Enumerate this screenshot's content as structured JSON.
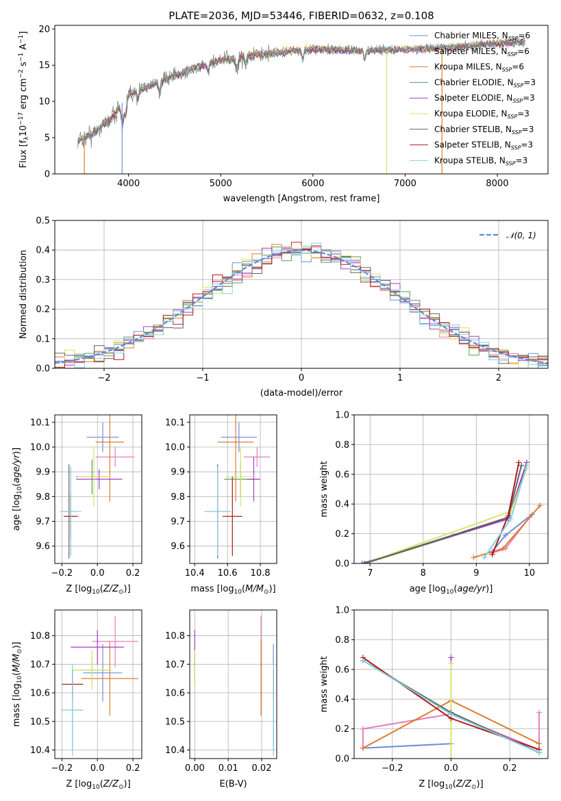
{
  "figure": {
    "title": "PLATE=2036, MJD=53446, FIBERID=0632, z=0.108"
  },
  "models": [
    {
      "label": "Chabrier MILES, N$_{SSP}$=6",
      "color": "#6a8fd8"
    },
    {
      "label": "Salpeter MILES, N$_{SSP}$=6",
      "color": "#e37fbb"
    },
    {
      "label": "Kroupa MILES, N$_{SSP}$=6",
      "color": "#e07b2b"
    },
    {
      "label": "Chabrier ELODIE, N$_{SSP}$=3",
      "color": "#5a9a5a"
    },
    {
      "label": "Salpeter ELODIE, N$_{SSP}$=3",
      "color": "#a43bc8"
    },
    {
      "label": "Kroupa ELODIE, N$_{SSP}$=3",
      "color": "#d6e36a"
    },
    {
      "label": "Chabrier STELIB, N$_{SSP}$=3",
      "color": "#606060"
    },
    {
      "label": "Salpeter STELIB, N$_{SSP}$=3",
      "color": "#b01a1a"
    },
    {
      "label": "Kroupa STELIB, N$_{SSP}$=3",
      "color": "#7fd1e0"
    }
  ],
  "legend_text": [
    "Chabrier MILES, N",
    "Salpeter MILES, N",
    "Kroupa MILES, N",
    "Chabrier ELODIE, N",
    "Salpeter ELODIE, N",
    "Kroupa ELODIE, N",
    "Chabrier STELIB, N",
    "Salpeter STELIB, N",
    "Kroupa STELIB, N"
  ],
  "legend_sub": "SSP",
  "legend_val": [
    "=6",
    "=6",
    "=6",
    "=3",
    "=3",
    "=3",
    "=3",
    "=3",
    "=3"
  ],
  "chart_data": [
    {
      "id": "spectrum",
      "type": "line",
      "xlabel": "wavelength [Angstrom, rest frame]",
      "ylabel_main": "Flux [f",
      "ylabel_sub": "λ",
      "ylabel_rest": "10",
      "ylabel_exp": "−17",
      "ylabel_tail": " erg cm",
      "ylabel_exp2": "−2",
      "ylabel_tail2": " s",
      "ylabel_exp3": "−1",
      "ylabel_tail3": " A",
      "ylabel_exp4": "−1",
      "ylabel_end": "]",
      "xlim": [
        3200,
        8550
      ],
      "ylim": [
        0,
        20.5
      ],
      "xticks": [
        4000,
        5000,
        6000,
        7000,
        8000
      ],
      "yticks": [
        0,
        5,
        10,
        15,
        20
      ],
      "continuum_x": [
        3450,
        3600,
        3800,
        4000,
        4200,
        4500,
        4800,
        5000,
        5200,
        5500,
        5800,
        6000,
        6300,
        6600,
        7000,
        7300,
        7600,
        8000,
        8300
      ],
      "continuum_y": [
        4.5,
        5.5,
        7.5,
        11.0,
        12.0,
        13.5,
        15.0,
        15.6,
        16.2,
        16.5,
        17.0,
        17.2,
        17.1,
        17.0,
        17.2,
        17.3,
        17.6,
        18.0,
        18.3
      ],
      "wavelength_range": [
        3450,
        8300
      ]
    },
    {
      "id": "residuals",
      "type": "histogram",
      "xlabel": "(data-model)/error",
      "ylabel": "Normed distribution",
      "xlim": [
        -2.5,
        2.5
      ],
      "ylim": [
        0,
        0.5
      ],
      "xticks": [
        -2,
        -1,
        0,
        1,
        2
      ],
      "yticks": [
        0.0,
        0.1,
        0.2,
        0.3,
        0.4,
        0.5
      ],
      "grid": true,
      "bin_width": 0.1,
      "reference_curve": "𝒩(0, 1)",
      "legend_location": "upper right"
    },
    {
      "id": "age_vs_Z",
      "type": "scatter",
      "xlabel": "Z [log",
      "xlabel_sub": "10",
      "xlabel_rest": "(Z/Z",
      "xlabel_sun": "⊙",
      "xlabel_end": ")]",
      "ylabel": "age  [log10(age/yr)]",
      "xlim": [
        -0.24,
        0.25
      ],
      "ylim": [
        9.53,
        10.13
      ],
      "xticks": [
        -0.2,
        0.0,
        0.2
      ],
      "yticks": [
        9.6,
        9.7,
        9.8,
        9.9,
        10.0,
        10.1
      ],
      "grid": true,
      "points": [
        {
          "x": 0.03,
          "y": 10.04,
          "xerr": 0.09,
          "yerr": 0.06
        },
        {
          "x": 0.1,
          "y": 9.96,
          "xerr": 0.11,
          "yerr": 0.04
        },
        {
          "x": 0.07,
          "y": 10.02,
          "xerr": 0.08,
          "yerr": 0.24
        },
        {
          "x": -0.03,
          "y": 9.88,
          "xerr": 0.09,
          "yerr": 0.07
        },
        {
          "x": 0.01,
          "y": 9.87,
          "xerr": 0.13,
          "yerr": 0.04
        },
        {
          "x": -0.02,
          "y": 9.88,
          "xerr": 0.09,
          "yerr": 0.12
        },
        {
          "x": -0.16,
          "y": 9.74,
          "xerr": 0.04,
          "yerr": 0.19
        },
        {
          "x": -0.15,
          "y": 9.72,
          "xerr": 0.04,
          "yerr": 0.09
        },
        {
          "x": -0.15,
          "y": 9.74,
          "xerr": 0.06,
          "yerr": 0.18
        }
      ]
    },
    {
      "id": "age_vs_mass",
      "type": "scatter",
      "xlabel": "mass [log",
      "ylabel": "",
      "xlim": [
        10.37,
        10.9
      ],
      "ylim": [
        9.53,
        10.13
      ],
      "xticks": [
        10.4,
        10.6,
        10.8
      ],
      "yticks": [
        9.6,
        9.7,
        9.8,
        9.9,
        10.0,
        10.1
      ],
      "grid": true,
      "points": [
        {
          "x": 10.67,
          "y": 10.04,
          "xerr": 0.11,
          "yerr": 0.06
        },
        {
          "x": 10.78,
          "y": 9.96,
          "xerr": 0.08,
          "yerr": 0.04
        },
        {
          "x": 10.65,
          "y": 10.02,
          "xerr": 0.11,
          "yerr": 0.24
        },
        {
          "x": 10.68,
          "y": 9.87,
          "xerr": 0.1,
          "yerr": 0.07
        },
        {
          "x": 10.76,
          "y": 9.87,
          "xerr": 0.04,
          "yerr": 0.09
        },
        {
          "x": 10.68,
          "y": 9.88,
          "xerr": 0.09,
          "yerr": 0.12
        },
        {
          "x": 10.54,
          "y": 9.74,
          "xerr": 0.08,
          "yerr": 0.19
        },
        {
          "x": 10.63,
          "y": 9.72,
          "xerr": 0.06,
          "yerr": 0.16
        },
        {
          "x": 10.54,
          "y": 9.74,
          "xerr": 0.08,
          "yerr": 0.18
        }
      ]
    },
    {
      "id": "massweight_vs_age",
      "type": "line",
      "xlabel": "age  [log",
      "ylabel": "mass weight",
      "xlim": [
        6.7,
        10.35
      ],
      "ylim": [
        0,
        1.0
      ],
      "xticks": [
        7,
        8,
        9,
        10
      ],
      "yticks": [
        0.0,
        0.2,
        0.4,
        0.6,
        0.8,
        1.0
      ],
      "grid": true,
      "series": [
        {
          "x": [
            9.3,
            9.55,
            10.05
          ],
          "y": [
            0.08,
            0.19,
            0.33
          ]
        },
        {
          "x": [
            9.3,
            9.55,
            10.0
          ],
          "y": [
            0.07,
            0.1,
            0.31
          ]
        },
        {
          "x": [
            8.95,
            9.5,
            10.2
          ],
          "y": [
            0.04,
            0.1,
            0.39
          ]
        },
        {
          "x": [
            6.9,
            9.6,
            9.95
          ],
          "y": [
            0.0,
            0.3,
            0.68
          ]
        },
        {
          "x": [
            6.85,
            9.6,
            9.95
          ],
          "y": [
            0.0,
            0.3,
            0.68
          ]
        },
        {
          "x": [
            6.9,
            9.65,
            9.95
          ],
          "y": [
            0.0,
            0.35,
            0.64
          ]
        },
        {
          "x": [
            6.9,
            9.6,
            9.85
          ],
          "y": [
            0.0,
            0.31,
            0.66
          ]
        },
        {
          "x": [
            9.3,
            9.6,
            9.8
          ],
          "y": [
            0.06,
            0.32,
            0.68
          ]
        },
        {
          "x": [
            9.15,
            9.65,
            9.95
          ],
          "y": [
            0.04,
            0.3,
            0.66
          ]
        }
      ]
    },
    {
      "id": "mass_vs_Z",
      "type": "scatter",
      "xlabel": "Z [log",
      "ylabel": "mass [log10(M/M⊙)]",
      "xlim": [
        -0.24,
        0.25
      ],
      "ylim": [
        10.37,
        10.89
      ],
      "xticks": [
        -0.2,
        0.0,
        0.2
      ],
      "yticks": [
        10.4,
        10.5,
        10.6,
        10.7,
        10.8
      ],
      "grid": true,
      "points": [
        {
          "x": 0.03,
          "y": 10.67,
          "xerr": 0.11,
          "yerr": 0.1
        },
        {
          "x": 0.1,
          "y": 10.78,
          "xerr": 0.13,
          "yerr": 0.09
        },
        {
          "x": 0.07,
          "y": 10.65,
          "xerr": 0.16,
          "yerr": 0.13
        },
        {
          "x": -0.03,
          "y": 10.68,
          "xerr": 0.1,
          "yerr": 0.05
        },
        {
          "x": 0.0,
          "y": 10.76,
          "xerr": 0.15,
          "yerr": 0.06
        },
        {
          "x": -0.03,
          "y": 10.68,
          "xerr": 0.11,
          "yerr": 0.07
        },
        {
          "x": -0.14,
          "y": 10.54,
          "xerr": 0.06,
          "yerr": 0.14
        },
        {
          "x": -0.14,
          "y": 10.63,
          "xerr": 0.06,
          "yerr": 0.05
        },
        {
          "x": -0.14,
          "y": 10.54,
          "xerr": 0.06,
          "yerr": 0.16
        }
      ]
    },
    {
      "id": "mass_vs_ebv",
      "type": "scatter",
      "xlabel": "E(B-V)",
      "ylabel": "",
      "xlim": [
        -0.0015,
        0.0245
      ],
      "ylim": [
        10.37,
        10.89
      ],
      "xticks": [
        0.0,
        0.01,
        0.02
      ],
      "yticks": [
        10.4,
        10.5,
        10.6,
        10.7,
        10.8
      ],
      "grid": true,
      "points": [
        {
          "x": 0.0235,
          "y": 10.67,
          "yerr": 0.1
        },
        {
          "x": 0.0198,
          "y": 10.78,
          "yerr": 0.09
        },
        {
          "x": 0.0198,
          "y": 10.65,
          "yerr": 0.13
        },
        {
          "x": 0.0,
          "y": 10.68,
          "yerr": 0.05
        },
        {
          "x": 0.0,
          "y": 10.76,
          "yerr": 0.06
        },
        {
          "x": 0.0,
          "y": 10.68,
          "yerr": 0.07
        },
        {
          "x": 0.0235,
          "y": 10.54,
          "yerr": 0.14
        },
        {
          "x": 0.0235,
          "y": 10.63,
          "yerr": 0.05
        },
        {
          "x": 0.0235,
          "y": 10.54,
          "yerr": 0.16
        }
      ]
    },
    {
      "id": "massweight_vs_Z",
      "type": "line",
      "xlabel": "Z [log",
      "ylabel": "mass weight",
      "xlim": [
        -0.33,
        0.33
      ],
      "ylim": [
        0,
        1.0
      ],
      "xticks": [
        -0.2,
        0.0,
        0.2
      ],
      "yticks": [
        0.0,
        0.2,
        0.4,
        0.6,
        0.8,
        1.0
      ],
      "grid": true,
      "series": [
        {
          "x": [
            -0.3,
            0.0,
            0.0,
            0.3
          ],
          "y": [
            0.07,
            0.1,
            0.3,
            0.04
          ]
        },
        {
          "x": [
            -0.3,
            -0.3,
            0.0,
            0.3,
            0.3
          ],
          "y": [
            0.07,
            0.2,
            0.3,
            0.06,
            0.31
          ]
        },
        {
          "x": [
            -0.3,
            0.0,
            0.3
          ],
          "y": [
            0.07,
            0.39,
            0.1
          ]
        },
        {
          "x": [
            -0.3,
            0.0,
            0.3
          ],
          "y": [
            0.66,
            0.3,
            0.04
          ]
        },
        {
          "x": [
            0.0,
            0.0
          ],
          "y": [
            0.0,
            0.68
          ]
        },
        {
          "x": [
            0.0,
            0.0
          ],
          "y": [
            0.0,
            0.64
          ]
        },
        {
          "x": [
            -0.3,
            0.0,
            0.3
          ],
          "y": [
            0.66,
            0.31,
            0.04
          ]
        },
        {
          "x": [
            -0.3,
            0.0,
            0.3
          ],
          "y": [
            0.68,
            0.27,
            0.06
          ]
        },
        {
          "x": [
            -0.3,
            0.0,
            0.3
          ],
          "y": [
            0.66,
            0.3,
            0.04
          ]
        }
      ]
    }
  ]
}
